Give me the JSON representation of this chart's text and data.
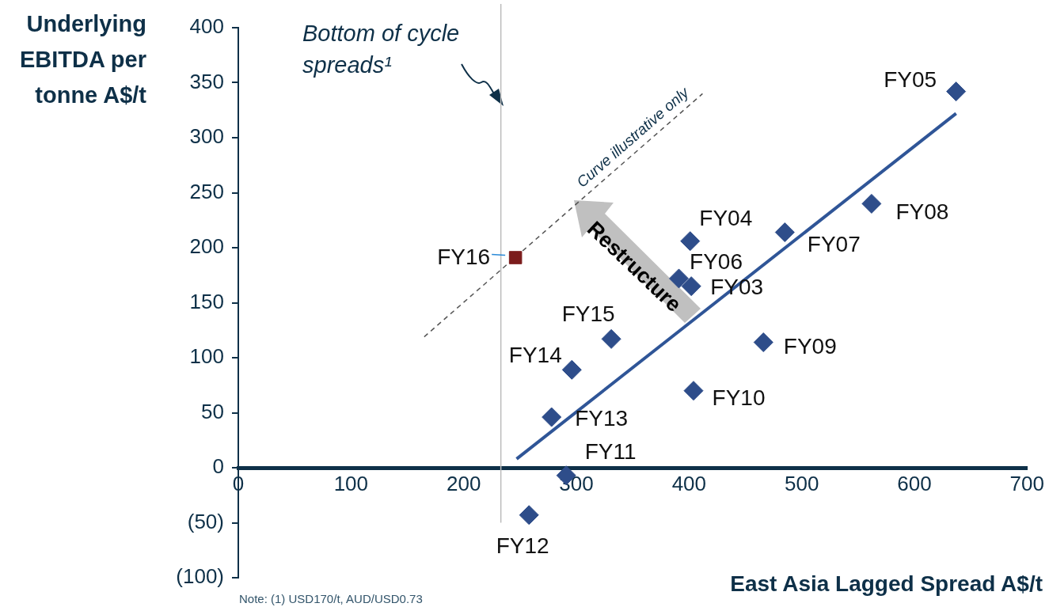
{
  "chart_data": {
    "type": "scatter",
    "xlabel": "East Asia Lagged Spread A$/t",
    "ylabel": "Underlying EBITDA per tonne A$/t",
    "xlim": [
      0,
      700
    ],
    "xticks": [
      0,
      100,
      200,
      300,
      400,
      500,
      600,
      700
    ],
    "ylim": [
      -100,
      400
    ],
    "yticks": [
      {
        "value": -100,
        "label": "(100)"
      },
      {
        "value": -50,
        "label": "(50)"
      },
      0,
      50,
      100,
      150,
      200,
      250,
      300,
      350,
      400
    ],
    "grid": false,
    "legend": false,
    "series": [
      {
        "type": "scatter",
        "marker": "diamond",
        "color": "#2e4d8a",
        "x": [
          402,
          401,
          637,
          391,
          485,
          562,
          466,
          404,
          291,
          258,
          278,
          296,
          331
        ],
        "values": [
          165,
          206,
          342,
          172,
          214,
          240,
          114,
          70,
          -7,
          -43,
          46,
          89,
          117
        ]
      },
      {
        "type": "scatter",
        "marker": "square",
        "color": "#7b1c1c",
        "x": [
          246
        ],
        "values": [
          191
        ]
      },
      {
        "type": "line",
        "marker": "none",
        "line_style": "solid",
        "color": "#2f5597",
        "x": [
          247,
          637
        ],
        "values": [
          8,
          322
        ]
      },
      {
        "type": "line",
        "marker": "none",
        "line_style": "dashed",
        "color": "#555555",
        "name": "Curve illustrative only",
        "x": [
          165,
          412
        ],
        "values": [
          119,
          340
        ]
      }
    ],
    "ref_lines": [
      {
        "axis": "x",
        "value": 233,
        "label": "Bottom of cycle spreads¹",
        "color": "#bbbbbb"
      }
    ],
    "annotations": [
      {
        "text": "FY03",
        "x": 402,
        "y": 165
      },
      {
        "text": "FY04",
        "x": 401,
        "y": 206
      },
      {
        "text": "FY05",
        "x": 637,
        "y": 342
      },
      {
        "text": "FY06",
        "x": 391,
        "y": 172
      },
      {
        "text": "FY07",
        "x": 485,
        "y": 214
      },
      {
        "text": "FY08",
        "x": 562,
        "y": 240
      },
      {
        "text": "FY09",
        "x": 466,
        "y": 114
      },
      {
        "text": "FY10",
        "x": 404,
        "y": 70
      },
      {
        "text": "FY11",
        "x": 291,
        "y": -7
      },
      {
        "text": "FY12",
        "x": 258,
        "y": -43
      },
      {
        "text": "FY13",
        "x": 278,
        "y": 46
      },
      {
        "text": "FY14",
        "x": 296,
        "y": 89
      },
      {
        "text": "FY15",
        "x": 331,
        "y": 117
      },
      {
        "text": "FY16",
        "x": 246,
        "y": 191
      },
      "Restructure",
      "Note: (1) USD170/t, AUD/USD0.73"
    ]
  }
}
